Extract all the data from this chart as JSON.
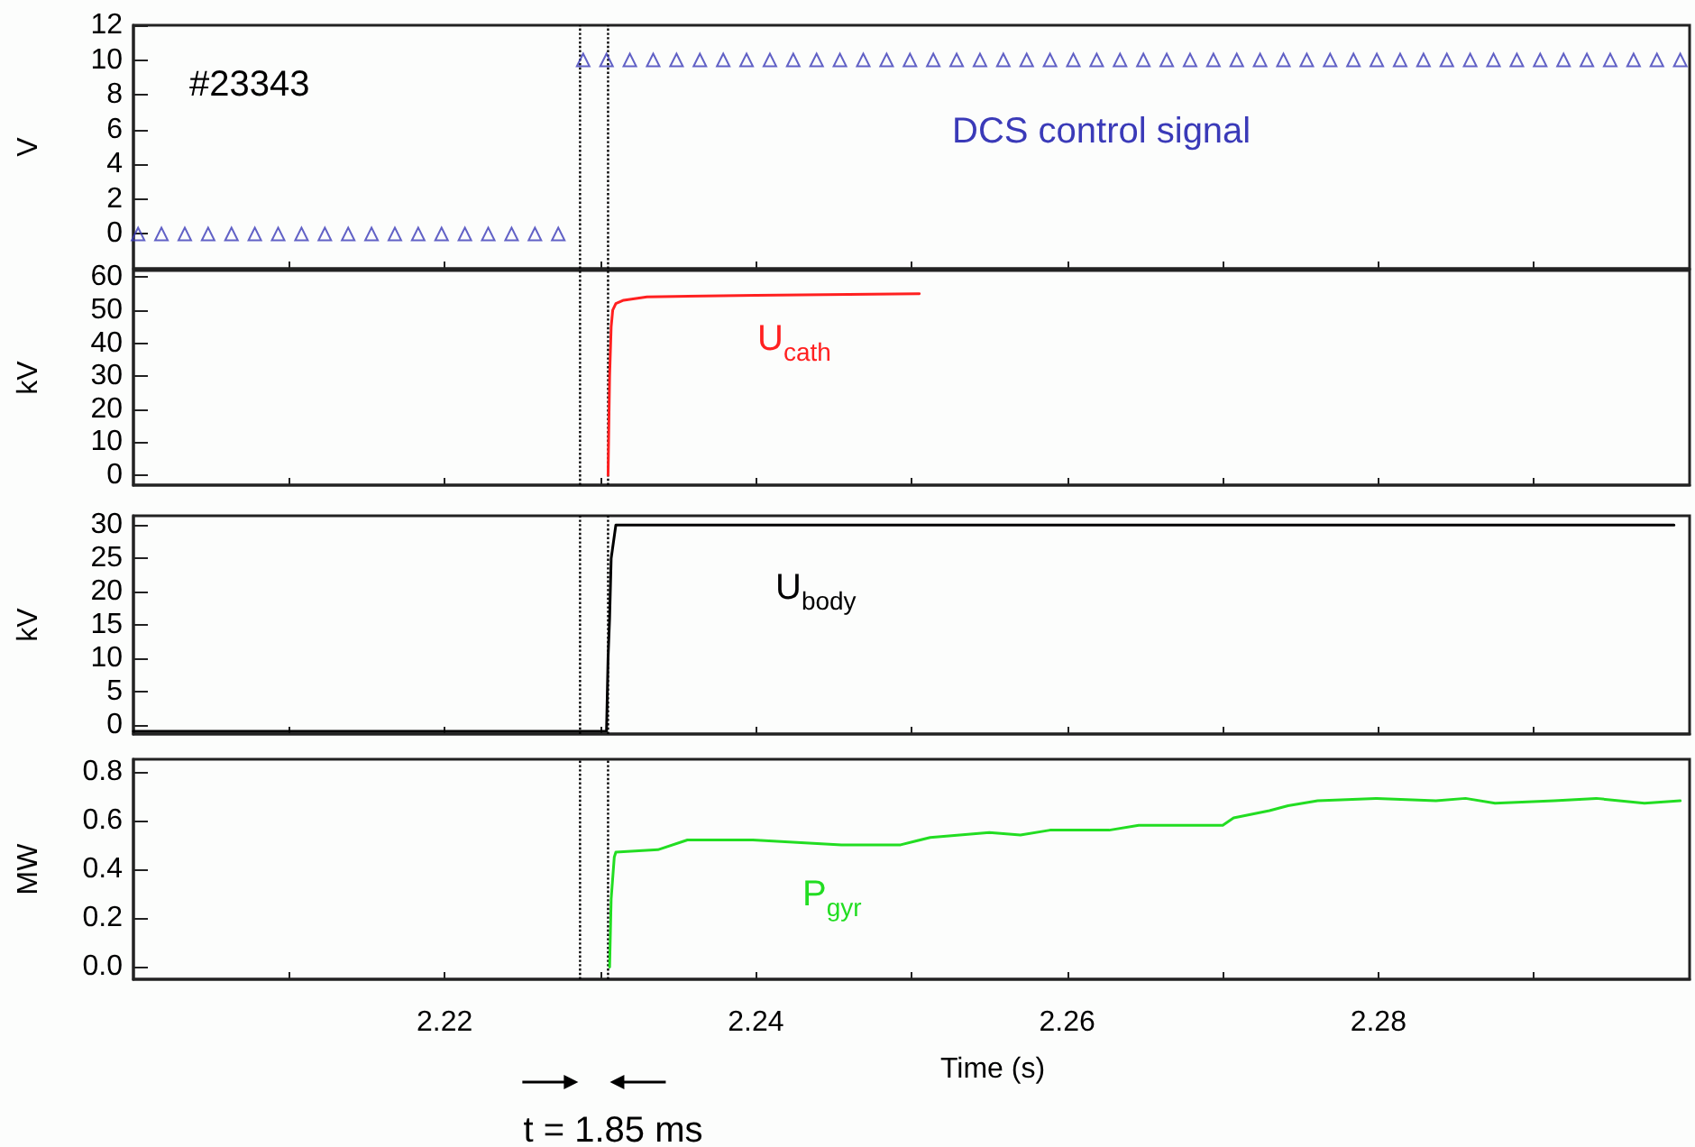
{
  "chart_data": [
    {
      "type": "scatter",
      "ylabel": "V",
      "marker": "triangle",
      "grid": false,
      "tick_labels": "y",
      "xlim": [
        2.2,
        2.3
      ],
      "xticks": [
        {
          "value": 2.21,
          "label": null
        },
        {
          "value": 2.22,
          "label": null
        },
        {
          "value": 2.23,
          "label": null
        },
        {
          "value": 2.24,
          "label": null
        },
        {
          "value": 2.25,
          "label": null
        },
        {
          "value": 2.26,
          "label": null
        },
        {
          "value": 2.27,
          "label": null
        },
        {
          "value": 2.28,
          "label": null
        },
        {
          "value": 2.29,
          "label": null
        }
      ],
      "ylim": [
        -2,
        12
      ],
      "yticks": [
        0,
        2,
        4,
        6,
        8,
        10,
        12
      ],
      "annotations": [
        "#23343"
      ],
      "ref_lines": [
        {
          "axis": "x",
          "value": 2.2287,
          "label": null,
          "color": "#000000",
          "line_style": "dotted"
        },
        {
          "axis": "x",
          "value": 2.2305,
          "label": null,
          "color": "#000000",
          "line_style": "dotted"
        }
      ],
      "series": [
        {
          "name": "DCS control signal",
          "color": "#3a3ab8",
          "x": [
            2.2003,
            2.2018,
            2.2033,
            2.2048,
            2.2063,
            2.2078,
            2.2093,
            2.2108,
            2.2123,
            2.2138,
            2.2153,
            2.2168,
            2.2183,
            2.2198,
            2.2213,
            2.2228,
            2.2243,
            2.2258,
            2.2273,
            2.2289,
            2.2304,
            2.2319,
            2.2334,
            2.2349,
            2.2364,
            2.2379,
            2.2394,
            2.2409,
            2.2424,
            2.2439,
            2.2454,
            2.2469,
            2.2484,
            2.2499,
            2.2514,
            2.2529,
            2.2544,
            2.2559,
            2.2574,
            2.2589,
            2.2604,
            2.2619,
            2.2634,
            2.2649,
            2.2664,
            2.2679,
            2.2694,
            2.2709,
            2.2724,
            2.2739,
            2.2754,
            2.2769,
            2.2784,
            2.2799,
            2.2814,
            2.2829,
            2.2844,
            2.2859,
            2.2874,
            2.2889,
            2.2904,
            2.2919,
            2.2934,
            2.2949,
            2.2964,
            2.2979,
            2.2994
          ],
          "values": [
            0,
            0,
            0,
            0,
            0,
            0,
            0,
            0,
            0,
            0,
            0,
            0,
            0,
            0,
            0,
            0,
            0,
            0,
            0,
            10,
            10,
            10,
            10,
            10,
            10,
            10,
            10,
            10,
            10,
            10,
            10,
            10,
            10,
            10,
            10,
            10,
            10,
            10,
            10,
            10,
            10,
            10,
            10,
            10,
            10,
            10,
            10,
            10,
            10,
            10,
            10,
            10,
            10,
            10,
            10,
            10,
            10,
            10,
            10,
            10,
            10,
            10,
            10,
            10,
            10,
            10,
            10
          ]
        }
      ]
    },
    {
      "type": "line",
      "ylabel": "kV",
      "marker": "none",
      "line_style": "solid",
      "grid": false,
      "tick_labels": "y",
      "xlim": [
        2.2,
        2.3
      ],
      "xticks": [
        {
          "value": 2.21,
          "label": null
        },
        {
          "value": 2.22,
          "label": null
        },
        {
          "value": 2.23,
          "label": null
        },
        {
          "value": 2.24,
          "label": null
        },
        {
          "value": 2.25,
          "label": null
        },
        {
          "value": 2.26,
          "label": null
        },
        {
          "value": 2.27,
          "label": null
        },
        {
          "value": 2.28,
          "label": null
        },
        {
          "value": 2.29,
          "label": null
        }
      ],
      "ylim": [
        -3,
        62
      ],
      "yticks": [
        0,
        10,
        20,
        30,
        40,
        50,
        60
      ],
      "ref_lines": [
        {
          "axis": "x",
          "value": 2.2287,
          "label": null,
          "color": "#000000",
          "line_style": "dotted"
        },
        {
          "axis": "x",
          "value": 2.2305,
          "label": null,
          "color": "#000000",
          "line_style": "dotted"
        }
      ],
      "series": [
        {
          "name": "U$_{cath}$",
          "color": "#ff2020",
          "x": [
            2.2305,
            2.2306,
            2.2307,
            2.2308,
            2.231,
            2.2315,
            2.233,
            2.24,
            2.2505
          ],
          "values": [
            0,
            30,
            45,
            50,
            52,
            53,
            54,
            54.5,
            55
          ]
        }
      ]
    },
    {
      "type": "line",
      "ylabel": "kV",
      "marker": "none",
      "line_style": "solid",
      "grid": false,
      "tick_labels": "y",
      "xlim": [
        2.2,
        2.3
      ],
      "xticks": [
        {
          "value": 2.21,
          "label": null
        },
        {
          "value": 2.22,
          "label": null
        },
        {
          "value": 2.23,
          "label": null
        },
        {
          "value": 2.24,
          "label": null
        },
        {
          "value": 2.25,
          "label": null
        },
        {
          "value": 2.26,
          "label": null
        },
        {
          "value": 2.27,
          "label": null
        },
        {
          "value": 2.28,
          "label": null
        },
        {
          "value": 2.29,
          "label": null
        }
      ],
      "ylim": [
        -1.4,
        31.4
      ],
      "yticks": [
        0,
        5,
        10,
        15,
        20,
        25,
        30
      ],
      "ref_lines": [
        {
          "axis": "x",
          "value": 2.2287,
          "label": null,
          "color": "#000000",
          "line_style": "dotted"
        },
        {
          "axis": "x",
          "value": 2.2305,
          "label": null,
          "color": "#000000",
          "line_style": "dotted"
        }
      ],
      "series": [
        {
          "name": "U$_{body}$",
          "color": "#000000",
          "x": [
            2.2,
            2.2304,
            2.2305,
            2.2306,
            2.2307,
            2.231,
            2.299
          ],
          "values": [
            -1,
            -1,
            10,
            16,
            25,
            30,
            30
          ]
        }
      ]
    },
    {
      "type": "line",
      "ylabel": "MW",
      "xlabel": "Time (s)",
      "marker": "none",
      "line_style": "solid",
      "grid": false,
      "xlim": [
        2.2,
        2.3
      ],
      "xticks": [
        {
          "value": 2.21,
          "label": null
        },
        2.22,
        {
          "value": 2.23,
          "label": null
        },
        2.24,
        {
          "value": 2.25,
          "label": null
        },
        2.26,
        {
          "value": 2.27,
          "label": null
        },
        2.28,
        {
          "value": 2.29,
          "label": null
        }
      ],
      "ylim": [
        -0.05,
        0.85
      ],
      "yticks": [
        {
          "value": 0,
          "label": "0.0"
        },
        0.2,
        0.4,
        0.6,
        0.8
      ],
      "annotations": [
        "t = 1.85 ms"
      ],
      "ref_lines": [
        {
          "axis": "x",
          "value": 2.2287,
          "label": null,
          "color": "#000000",
          "line_style": "dotted"
        },
        {
          "axis": "x",
          "value": 2.2305,
          "label": null,
          "color": "#000000",
          "line_style": "dotted"
        }
      ],
      "series": [
        {
          "name": "P$_{gyr}$",
          "color": "#22dd22",
          "x": [
            2.2306,
            2.2307,
            2.2309,
            2.231,
            2.2337,
            2.2356,
            2.2398,
            2.2455,
            2.2493,
            2.2512,
            2.255,
            2.257,
            2.2589,
            2.2627,
            2.2646,
            2.27,
            2.2707,
            2.273,
            2.2742,
            2.2761,
            2.2799,
            2.2837,
            2.2856,
            2.2875,
            2.2913,
            2.294,
            2.2971,
            2.2994
          ],
          "values": [
            0,
            0.28,
            0.45,
            0.47,
            0.48,
            0.52,
            0.52,
            0.5,
            0.5,
            0.53,
            0.55,
            0.54,
            0.56,
            0.56,
            0.58,
            0.58,
            0.61,
            0.64,
            0.66,
            0.68,
            0.69,
            0.68,
            0.69,
            0.67,
            0.68,
            0.69,
            0.67,
            0.68
          ]
        }
      ]
    }
  ]
}
